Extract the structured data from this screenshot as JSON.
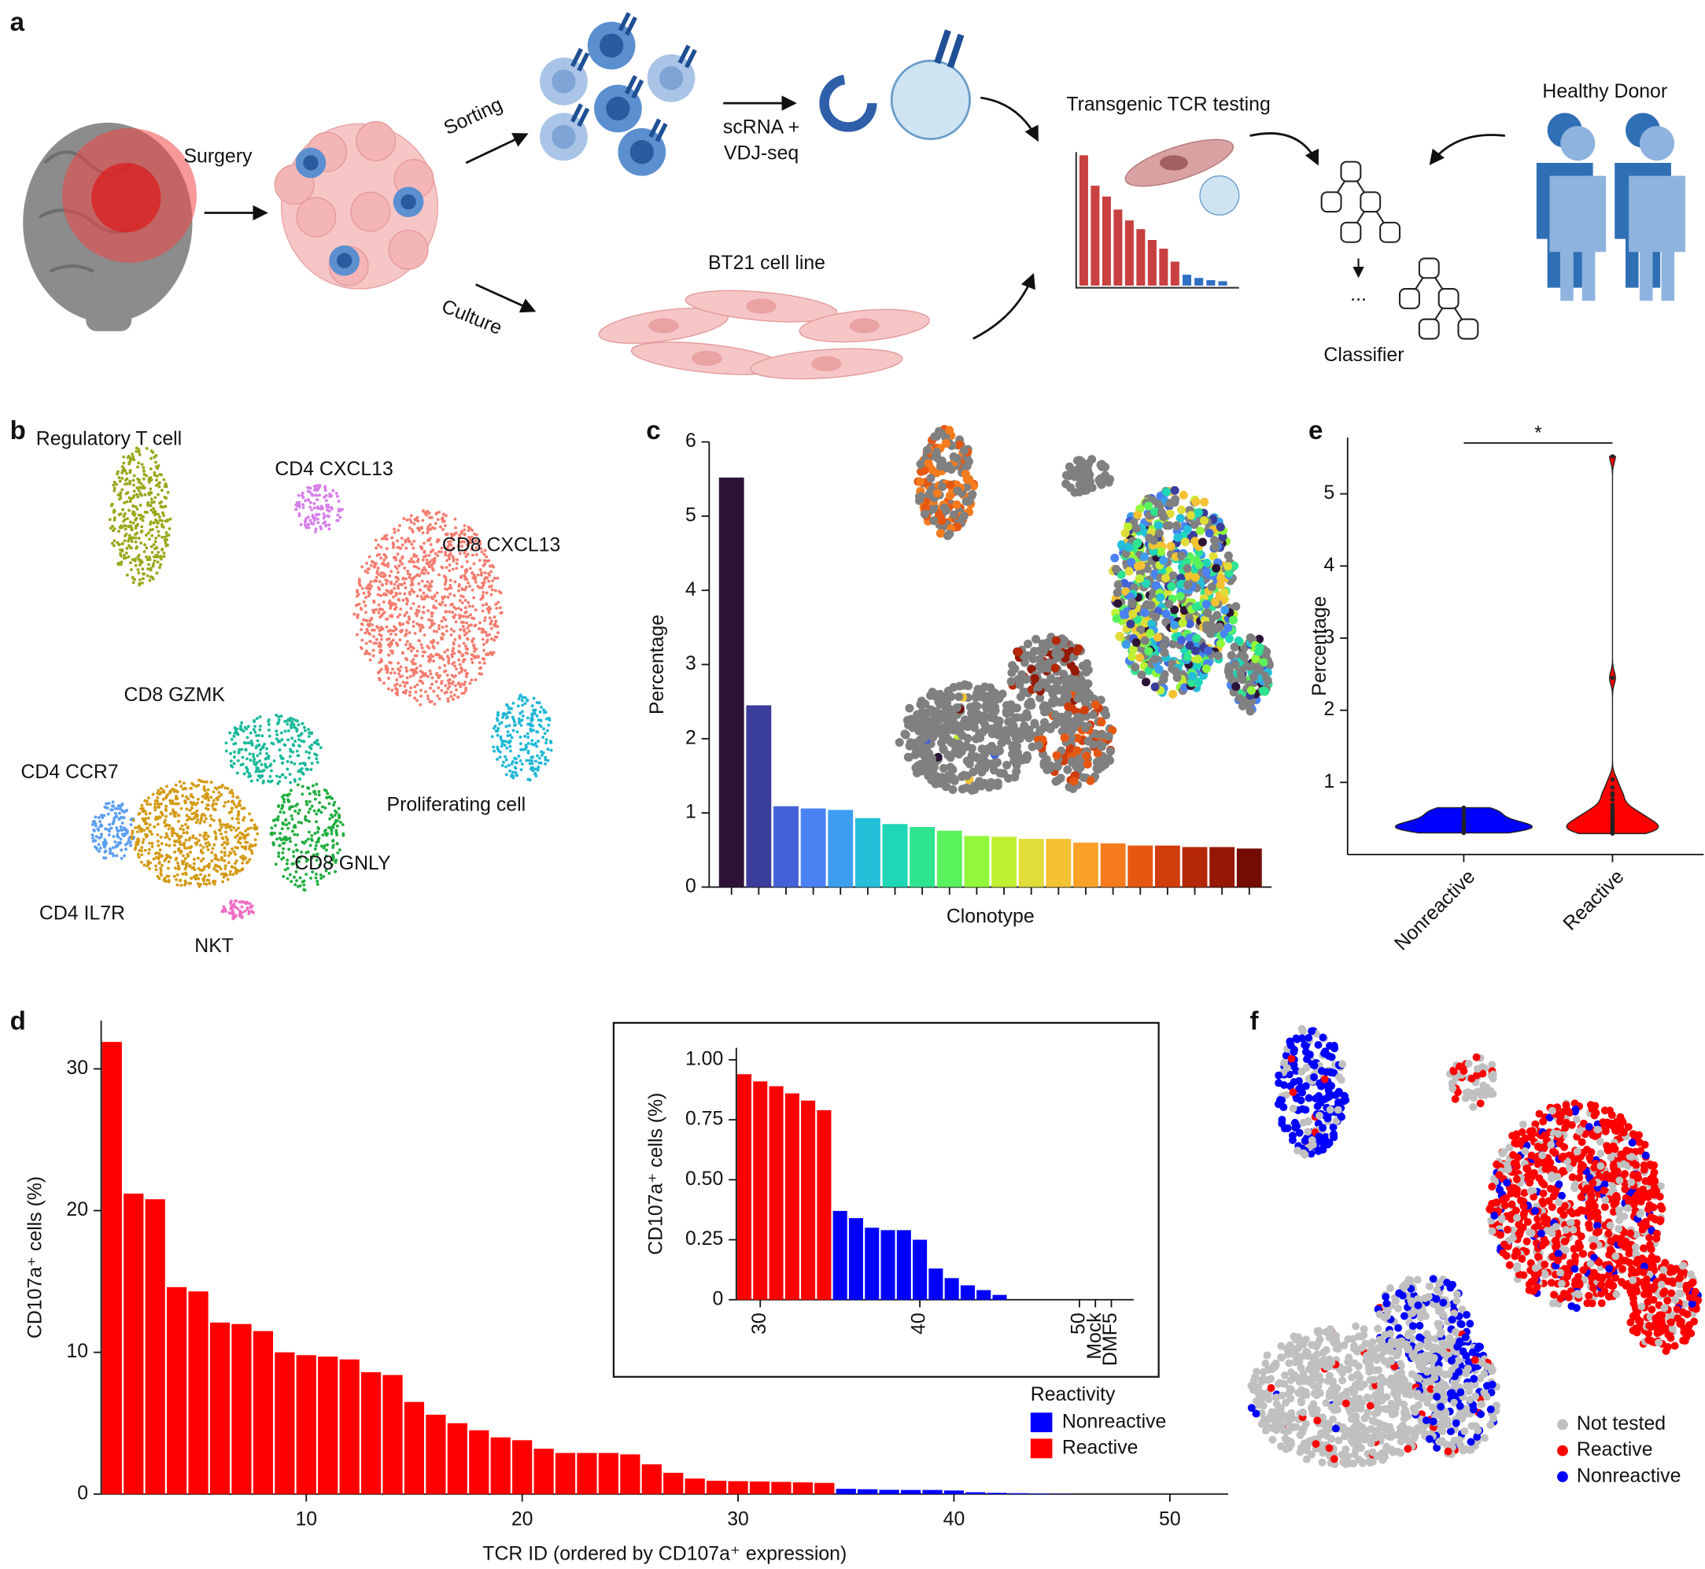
{
  "panel_labels": [
    "a",
    "b",
    "c",
    "d",
    "e",
    "f"
  ],
  "schematic": {
    "surgery": "Surgery",
    "sorting": "Sorting",
    "culture": "Culture",
    "sequencing": [
      "scRNA +",
      "VDJ-seq"
    ],
    "cell_line": "BT21 cell line",
    "testing": "Transgenic TCR testing",
    "donor": "Healthy Donor",
    "ellipsis": "...",
    "classifier": "Classifier"
  },
  "umap_clusters": [
    {
      "name": "Regulatory T cell",
      "color": "#9aa81a"
    },
    {
      "name": "CD4 CXCL13",
      "color": "#d67ee8"
    },
    {
      "name": "CD8 CXCL13",
      "color": "#f47c6e"
    },
    {
      "name": "CD8 GZMK",
      "color": "#1ab99a"
    },
    {
      "name": "CD4 CCR7",
      "color": "#5b9ef2"
    },
    {
      "name": "Proliferating cell",
      "color": "#1fb7d6"
    },
    {
      "name": "CD8 GNLY",
      "color": "#1fad3e"
    },
    {
      "name": "CD4 IL7R",
      "color": "#d49a14"
    },
    {
      "name": "NKT",
      "color": "#f06dc4"
    }
  ],
  "chart_data": [
    {
      "type": "bar",
      "ylabel": "Percentage",
      "xlabel": "Clonotype",
      "values": [
        5.52,
        2.45,
        1.09,
        1.06,
        1.04,
        0.93,
        0.85,
        0.81,
        0.76,
        0.69,
        0.68,
        0.65,
        0.65,
        0.6,
        0.59,
        0.56,
        0.56,
        0.54,
        0.54,
        0.52
      ],
      "colors": [
        "#2d1436",
        "#3b3d9a",
        "#4462d8",
        "#4a82f4",
        "#3d9ef0",
        "#25bfd8",
        "#1fd6b6",
        "#2ee48e",
        "#5af25c",
        "#92f83a",
        "#bff032",
        "#e0dc38",
        "#f4c232",
        "#fba12a",
        "#f57b1d",
        "#e65812",
        "#d13c0b",
        "#b52806",
        "#951804",
        "#730d04"
      ],
      "ylim": [
        0,
        6
      ],
      "yticks": [
        0,
        1,
        2,
        3,
        4,
        5,
        6
      ]
    },
    {
      "type": "violin",
      "ylabel": "Percentage",
      "categories": [
        "Nonreactive",
        "Reactive"
      ],
      "series": [
        {
          "color": "#0000ff",
          "values": [
            0.65,
            0.6,
            0.55,
            0.5,
            0.45,
            0.42,
            0.4,
            0.38,
            0.35,
            0.32,
            0.3
          ]
        },
        {
          "color": "#ff0000",
          "values": [
            5.52,
            2.45,
            1.04,
            0.93,
            0.85,
            0.82,
            0.76,
            0.69,
            0.65,
            0.62,
            0.59,
            0.57,
            0.55,
            0.54,
            0.52,
            0.5,
            0.48,
            0.46,
            0.45,
            0.43,
            0.42,
            0.4,
            0.39,
            0.38,
            0.37,
            0.36,
            0.35,
            0.34,
            0.33,
            0.32,
            0.31,
            0.3,
            0.3,
            0.29
          ]
        }
      ],
      "ylim": [
        0,
        5.78
      ],
      "yticks": [
        1,
        2,
        3,
        4,
        5
      ],
      "annotation": "*"
    },
    {
      "type": "bar",
      "ylabel": "CD107a⁺ cells (%)",
      "xlabel": "TCR ID (ordered by CD107a⁺ expression)",
      "series": [
        {
          "name": "Nonreactive",
          "color": "#0000ff",
          "x": [
            35,
            36,
            37,
            38,
            39,
            40,
            41,
            42,
            43,
            44,
            45
          ],
          "values": [
            0.37,
            0.34,
            0.3,
            0.29,
            0.29,
            0.25,
            0.13,
            0.09,
            0.06,
            0.04,
            0.02
          ]
        },
        {
          "name": "Reactive",
          "color": "#ff0000",
          "x": [
            1,
            2,
            3,
            4,
            5,
            6,
            7,
            8,
            9,
            10,
            11,
            12,
            13,
            14,
            15,
            16,
            17,
            18,
            19,
            20,
            21,
            22,
            23,
            24,
            25,
            26,
            27,
            28,
            29,
            30,
            31,
            32,
            33,
            34
          ],
          "values": [
            31.9,
            21.2,
            20.8,
            14.6,
            14.3,
            12.1,
            12.0,
            11.5,
            10.0,
            9.8,
            9.7,
            9.5,
            8.6,
            8.4,
            6.5,
            5.6,
            5.0,
            4.5,
            4.0,
            3.8,
            3.2,
            2.9,
            2.9,
            2.9,
            2.8,
            2.1,
            1.5,
            1.1,
            0.94,
            0.91,
            0.89,
            0.86,
            0.83,
            0.79
          ]
        }
      ],
      "xlim": [
        0.5,
        52.7
      ],
      "ylim": [
        0,
        33.4
      ],
      "xticks": [
        10,
        20,
        30,
        40,
        50
      ],
      "yticks": [
        0,
        10,
        20,
        30
      ],
      "legend_title": "Reactivity",
      "legend": "lower right"
    },
    {
      "type": "bar",
      "ylabel": "CD107a⁺ cells (%)",
      "series": [
        {
          "color": "#ff0000",
          "x": [
            29,
            30,
            31,
            32,
            33,
            34
          ],
          "values": [
            0.94,
            0.91,
            0.89,
            0.86,
            0.83,
            0.79
          ]
        },
        {
          "color": "#0000ff",
          "x": [
            35,
            36,
            37,
            38,
            39,
            40,
            41,
            42,
            43,
            44,
            45
          ],
          "values": [
            0.37,
            0.34,
            0.3,
            0.29,
            0.29,
            0.25,
            0.13,
            0.09,
            0.06,
            0.04,
            0.02
          ]
        }
      ],
      "xlim": [
        28.5,
        53.4
      ],
      "ylim": [
        0,
        1.05
      ],
      "xticks": [
        30,
        40,
        50,
        {
          "value": 51,
          "label": "Mock"
        },
        {
          "value": 52,
          "label": "DMF5"
        }
      ],
      "yticks": [
        0,
        0.25,
        {
          "value": 0.5,
          "label": "0.50"
        },
        0.75,
        {
          "value": 1,
          "label": "1.00"
        }
      ]
    }
  ],
  "umap_reactivity": {
    "legend": [
      {
        "name": "Not tested",
        "color": "#c0c0c0"
      },
      {
        "name": "Reactive",
        "color": "#ff0000"
      },
      {
        "name": "Nonreactive",
        "color": "#0000ff"
      }
    ]
  }
}
